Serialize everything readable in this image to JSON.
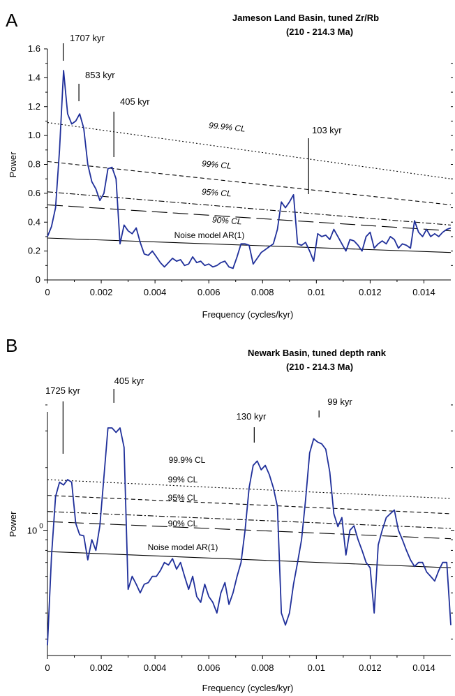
{
  "chart_data": [
    {
      "panel": "A",
      "type": "line",
      "title": "Jameson Land Basin, tuned Zr/Rb",
      "subtitle": "(210 - 214.3 Ma)",
      "xlabel": "Frequency (cycles/kyr)",
      "ylabel": "Power",
      "xlim": [
        0,
        0.015
      ],
      "ylim": [
        0,
        1.6
      ],
      "yscale": "linear",
      "xticks": [
        "0",
        "0.002",
        "0.004",
        "0.006",
        "0.008",
        "0.01",
        "0.012",
        "0.014"
      ],
      "yticks": [
        "0",
        "0.2",
        "0.4",
        "0.6",
        "0.8",
        "1.0",
        "1.2",
        "1.4",
        "1.6"
      ],
      "spectrum": {
        "x": [
          0,
          0.00015,
          0.0003,
          0.00045,
          0.0006,
          0.00075,
          0.0009,
          0.00105,
          0.0012,
          0.00135,
          0.0015,
          0.00165,
          0.0018,
          0.00195,
          0.0021,
          0.00225,
          0.0024,
          0.00255,
          0.0027,
          0.00285,
          0.003,
          0.00315,
          0.0033,
          0.00345,
          0.0036,
          0.00375,
          0.0039,
          0.00405,
          0.0042,
          0.00435,
          0.0045,
          0.00465,
          0.0048,
          0.00495,
          0.0051,
          0.00525,
          0.0054,
          0.00555,
          0.0057,
          0.00585,
          0.006,
          0.00615,
          0.0063,
          0.00645,
          0.0066,
          0.00675,
          0.0069,
          0.00705,
          0.0072,
          0.00735,
          0.0075,
          0.00765,
          0.0078,
          0.00795,
          0.0081,
          0.00825,
          0.0084,
          0.00855,
          0.0087,
          0.00885,
          0.009,
          0.00915,
          0.0093,
          0.00945,
          0.0096,
          0.00975,
          0.0099,
          0.01005,
          0.0102,
          0.01035,
          0.0105,
          0.01065,
          0.0108,
          0.01095,
          0.0111,
          0.01125,
          0.0114,
          0.01155,
          0.0117,
          0.01185,
          0.012,
          0.01215,
          0.0123,
          0.01245,
          0.0126,
          0.01275,
          0.0129,
          0.01305,
          0.0132,
          0.01335,
          0.0135,
          0.01365,
          0.0138,
          0.01395,
          0.0141,
          0.01425,
          0.0144,
          0.01455,
          0.0147,
          0.01485,
          0.015
        ],
        "y": [
          0.3,
          0.37,
          0.5,
          0.9,
          1.45,
          1.15,
          1.08,
          1.1,
          1.15,
          1.05,
          0.8,
          0.68,
          0.63,
          0.55,
          0.6,
          0.77,
          0.78,
          0.7,
          0.25,
          0.38,
          0.34,
          0.32,
          0.36,
          0.26,
          0.18,
          0.17,
          0.2,
          0.16,
          0.12,
          0.09,
          0.12,
          0.15,
          0.13,
          0.14,
          0.1,
          0.11,
          0.16,
          0.12,
          0.13,
          0.1,
          0.11,
          0.09,
          0.1,
          0.12,
          0.13,
          0.09,
          0.08,
          0.16,
          0.25,
          0.25,
          0.24,
          0.11,
          0.15,
          0.19,
          0.21,
          0.23,
          0.25,
          0.35,
          0.54,
          0.5,
          0.54,
          0.59,
          0.25,
          0.24,
          0.26,
          0.2,
          0.13,
          0.32,
          0.3,
          0.31,
          0.28,
          0.35,
          0.3,
          0.25,
          0.2,
          0.28,
          0.27,
          0.24,
          0.2,
          0.3,
          0.33,
          0.22,
          0.25,
          0.27,
          0.25,
          0.3,
          0.28,
          0.22,
          0.25,
          0.24,
          0.22,
          0.41,
          0.33,
          0.3,
          0.35,
          0.3,
          0.32,
          0.3,
          0.33,
          0.35,
          0.36
        ]
      },
      "confidence_lines": [
        {
          "label": "99.9% CL",
          "style": "dotted",
          "x": [
            0,
            0.015
          ],
          "y": [
            1.09,
            0.7
          ]
        },
        {
          "label": "99% CL",
          "style": "dashed",
          "x": [
            0,
            0.015
          ],
          "y": [
            0.82,
            0.52
          ]
        },
        {
          "label": "95% CL",
          "style": "dash-dot",
          "x": [
            0,
            0.015
          ],
          "y": [
            0.61,
            0.38
          ]
        },
        {
          "label": "90% CL",
          "style": "long-dash",
          "x": [
            0,
            0.015
          ],
          "y": [
            0.52,
            0.34
          ]
        },
        {
          "label": "Noise model AR(1)",
          "style": "solid",
          "x": [
            0,
            0.015
          ],
          "y": [
            0.29,
            0.19
          ]
        }
      ],
      "annotations": [
        {
          "text": "1707 kyr",
          "x": 0.000586
        },
        {
          "text": "853 kyr",
          "x": 0.00117
        },
        {
          "text": "405 kyr",
          "x": 0.00247
        },
        {
          "text": "103 kyr",
          "x": 0.00971
        }
      ]
    },
    {
      "panel": "B",
      "type": "line",
      "title": "Newark Basin, tuned depth rank",
      "subtitle": "(210 - 214.3 Ma)",
      "xlabel": "Frequency (cycles/kyr)",
      "ylabel": "Power",
      "xlim": [
        0,
        0.015
      ],
      "ylim": [
        0.25,
        4
      ],
      "yscale": "log",
      "xticks": [
        "0",
        "0.002",
        "0.004",
        "0.006",
        "0.008",
        "0.01",
        "0.012",
        "0.014"
      ],
      "yticks": [
        "10"
      ],
      "ytick_exponents": [
        "0"
      ],
      "spectrum": {
        "x": [
          0,
          0.00015,
          0.0003,
          0.00045,
          0.0006,
          0.00075,
          0.0009,
          0.00105,
          0.0012,
          0.00135,
          0.0015,
          0.00165,
          0.0018,
          0.00195,
          0.0021,
          0.00225,
          0.0024,
          0.00255,
          0.0027,
          0.00285,
          0.003,
          0.00315,
          0.0033,
          0.00345,
          0.0036,
          0.00375,
          0.0039,
          0.00405,
          0.0042,
          0.00435,
          0.0045,
          0.00465,
          0.0048,
          0.00495,
          0.0051,
          0.00525,
          0.0054,
          0.00555,
          0.0057,
          0.00585,
          0.006,
          0.00615,
          0.0063,
          0.00645,
          0.0066,
          0.00675,
          0.0069,
          0.00705,
          0.0072,
          0.00735,
          0.0075,
          0.00765,
          0.0078,
          0.00795,
          0.0081,
          0.00825,
          0.0084,
          0.00855,
          0.0087,
          0.00885,
          0.009,
          0.00915,
          0.0093,
          0.00945,
          0.0096,
          0.00975,
          0.0099,
          0.01005,
          0.0102,
          0.01035,
          0.0105,
          0.01065,
          0.0108,
          0.01095,
          0.0111,
          0.01125,
          0.0114,
          0.01155,
          0.0117,
          0.01185,
          0.012,
          0.01215,
          0.0123,
          0.01245,
          0.0126,
          0.01275,
          0.0129,
          0.01305,
          0.0132,
          0.01335,
          0.0135,
          0.01365,
          0.0138,
          0.01395,
          0.0141,
          0.01425,
          0.0144,
          0.01455,
          0.0147,
          0.01485,
          0.015
        ],
        "y": [
          0.28,
          0.75,
          1.45,
          1.7,
          1.65,
          1.75,
          1.7,
          1.08,
          0.95,
          0.94,
          0.72,
          0.9,
          0.8,
          1.05,
          1.8,
          3.1,
          3.1,
          2.95,
          3.1,
          2.5,
          0.52,
          0.6,
          0.55,
          0.5,
          0.55,
          0.56,
          0.6,
          0.6,
          0.64,
          0.7,
          0.68,
          0.73,
          0.65,
          0.7,
          0.6,
          0.52,
          0.6,
          0.48,
          0.45,
          0.55,
          0.48,
          0.45,
          0.4,
          0.5,
          0.56,
          0.44,
          0.5,
          0.6,
          0.7,
          1.0,
          1.6,
          2.05,
          2.15,
          1.95,
          2.05,
          1.85,
          1.6,
          1.3,
          0.4,
          0.35,
          0.4,
          0.55,
          0.7,
          0.9,
          1.4,
          2.35,
          2.75,
          2.65,
          2.6,
          2.45,
          1.9,
          1.2,
          1.04,
          1.15,
          0.76,
          1.0,
          1.05,
          0.9,
          0.8,
          0.7,
          0.66,
          0.4,
          0.85,
          1.0,
          1.15,
          1.2,
          1.25,
          1.0,
          0.9,
          0.8,
          0.72,
          0.67,
          0.7,
          0.7,
          0.63,
          0.6,
          0.57,
          0.64,
          0.7,
          0.7,
          0.35
        ]
      },
      "confidence_lines": [
        {
          "label": "99.9% CL",
          "style": "dotted",
          "x": [
            0,
            0.015
          ],
          "y": [
            1.75,
            1.42
          ]
        },
        {
          "label": "99% CL",
          "style": "dashed",
          "x": [
            0,
            0.015
          ],
          "y": [
            1.47,
            1.2
          ]
        },
        {
          "label": "95% CL",
          "style": "dash-dot",
          "x": [
            0,
            0.015
          ],
          "y": [
            1.23,
            1.02
          ]
        },
        {
          "label": "90% CL",
          "style": "long-dash",
          "x": [
            0,
            0.015
          ],
          "y": [
            1.1,
            0.91
          ]
        },
        {
          "label": "Noise model AR(1)",
          "style": "solid",
          "x": [
            0,
            0.015
          ],
          "y": [
            0.79,
            0.66
          ]
        }
      ],
      "annotations": [
        {
          "text": "1725 kyr",
          "x": 0.00058
        },
        {
          "text": "405 kyr",
          "x": 0.00247
        },
        {
          "text": "130 kyr",
          "x": 0.00769
        },
        {
          "text": "99 kyr",
          "x": 0.0101
        }
      ]
    }
  ]
}
